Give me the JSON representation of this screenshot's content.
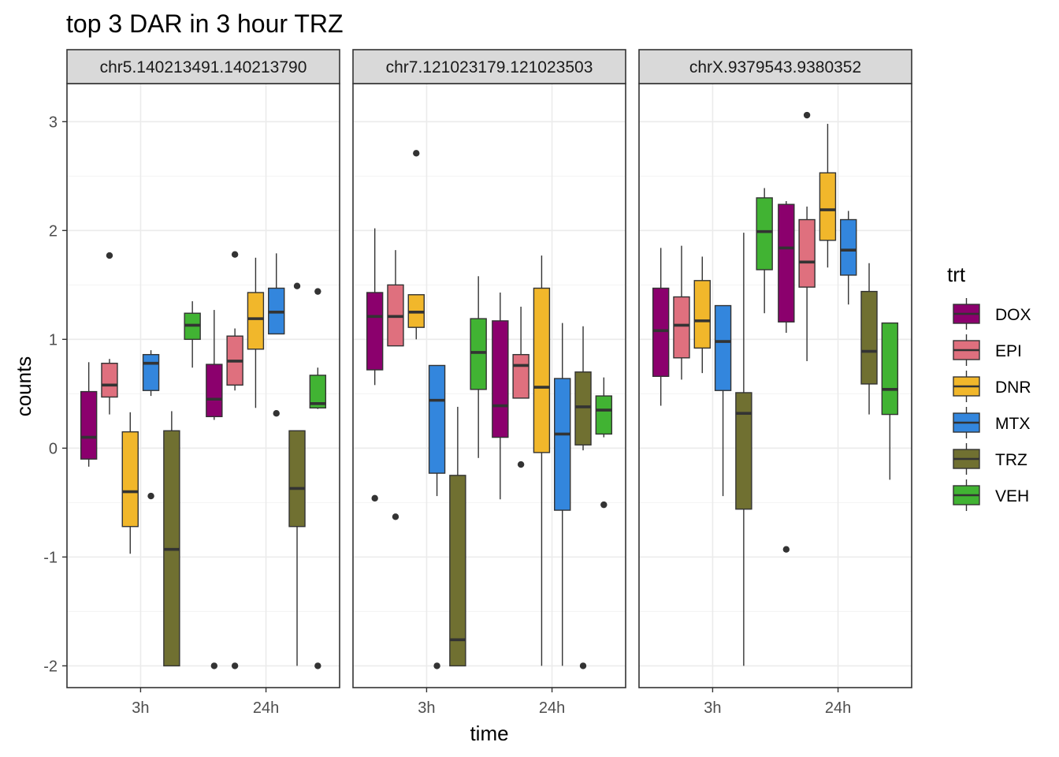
{
  "chart_data": {
    "type": "box",
    "title": "top 3 DAR in 3 hour TRZ",
    "xlabel": "time",
    "ylabel": "counts",
    "ylim": [
      -2.2,
      3.35
    ],
    "y_ticks": [
      -2,
      -1,
      0,
      1,
      2,
      3
    ],
    "y_tick_labels": [
      "-2",
      "-1",
      "0",
      "1",
      "2",
      "3"
    ],
    "categories": [
      "3h",
      "24h"
    ],
    "legend_title": "trt",
    "legend_position": "right",
    "grid": true,
    "series_order": [
      "DOX",
      "EPI",
      "DNR",
      "MTX",
      "TRZ",
      "VEH"
    ],
    "colors": {
      "DOX": "#8B006D",
      "EPI": "#DF707E",
      "DNR": "#F1B72B",
      "MTX": "#3386DD",
      "TRZ": "#707031",
      "VEH": "#41B333"
    },
    "panels": [
      {
        "strip": "chr5.140213491.140213790",
        "groups": {
          "3h": [
            {
              "trt": "DOX",
              "lower_whisker": -0.17,
              "q1": -0.1,
              "median": 0.1,
              "q3": 0.52,
              "upper_whisker": 0.79,
              "outliers": []
            },
            {
              "trt": "EPI",
              "lower_whisker": 0.31,
              "q1": 0.47,
              "median": 0.58,
              "q3": 0.78,
              "upper_whisker": 0.82,
              "outliers": [
                1.77
              ]
            },
            {
              "trt": "DNR",
              "lower_whisker": -0.97,
              "q1": -0.72,
              "median": -0.4,
              "q3": 0.15,
              "upper_whisker": 0.33,
              "outliers": []
            },
            {
              "trt": "MTX",
              "lower_whisker": 0.48,
              "q1": 0.53,
              "median": 0.78,
              "q3": 0.86,
              "upper_whisker": 0.9,
              "outliers": [
                -0.44
              ]
            },
            {
              "trt": "TRZ",
              "lower_whisker": -2.0,
              "q1": -2.0,
              "median": -0.93,
              "q3": 0.16,
              "upper_whisker": 0.34,
              "outliers": []
            },
            {
              "trt": "VEH",
              "lower_whisker": 0.74,
              "q1": 1.0,
              "median": 1.13,
              "q3": 1.24,
              "upper_whisker": 1.35,
              "outliers": []
            }
          ],
          "24h": [
            {
              "trt": "DOX",
              "lower_whisker": 0.26,
              "q1": 0.29,
              "median": 0.45,
              "q3": 0.77,
              "upper_whisker": 1.27,
              "outliers": [
                -2.0
              ]
            },
            {
              "trt": "EPI",
              "lower_whisker": 0.53,
              "q1": 0.58,
              "median": 0.8,
              "q3": 1.03,
              "upper_whisker": 1.1,
              "outliers": [
                1.78,
                -2.0
              ]
            },
            {
              "trt": "DNR",
              "lower_whisker": 0.37,
              "q1": 0.91,
              "median": 1.19,
              "q3": 1.43,
              "upper_whisker": 1.75,
              "outliers": []
            },
            {
              "trt": "MTX",
              "lower_whisker": 1.05,
              "q1": 1.05,
              "median": 1.25,
              "q3": 1.47,
              "upper_whisker": 1.79,
              "outliers": [
                0.32
              ]
            },
            {
              "trt": "TRZ",
              "lower_whisker": -2.0,
              "q1": -0.72,
              "median": -0.37,
              "q3": 0.16,
              "upper_whisker": 0.16,
              "outliers": [
                1.49
              ]
            },
            {
              "trt": "VEH",
              "lower_whisker": 0.36,
              "q1": 0.37,
              "median": 0.41,
              "q3": 0.67,
              "upper_whisker": 0.74,
              "outliers": [
                1.44,
                -2.0
              ]
            }
          ]
        }
      },
      {
        "strip": "chr7.121023179.121023503",
        "groups": {
          "3h": [
            {
              "trt": "DOX",
              "lower_whisker": 0.58,
              "q1": 0.72,
              "median": 1.21,
              "q3": 1.43,
              "upper_whisker": 2.02,
              "outliers": [
                -0.46
              ]
            },
            {
              "trt": "EPI",
              "lower_whisker": 0.94,
              "q1": 0.94,
              "median": 1.21,
              "q3": 1.5,
              "upper_whisker": 1.82,
              "outliers": [
                -0.63
              ]
            },
            {
              "trt": "DNR",
              "lower_whisker": 1.0,
              "q1": 1.11,
              "median": 1.25,
              "q3": 1.41,
              "upper_whisker": 1.41,
              "outliers": [
                2.71
              ]
            },
            {
              "trt": "MTX",
              "lower_whisker": -0.44,
              "q1": -0.23,
              "median": 0.44,
              "q3": 0.76,
              "upper_whisker": 0.76,
              "outliers": [
                -2.0
              ]
            },
            {
              "trt": "TRZ",
              "lower_whisker": -2.0,
              "q1": -2.0,
              "median": -1.76,
              "q3": -0.25,
              "upper_whisker": 0.38,
              "outliers": []
            },
            {
              "trt": "VEH",
              "lower_whisker": -0.09,
              "q1": 0.54,
              "median": 0.88,
              "q3": 1.19,
              "upper_whisker": 1.58,
              "outliers": []
            }
          ],
          "24h": [
            {
              "trt": "DOX",
              "lower_whisker": -0.47,
              "q1": 0.1,
              "median": 0.39,
              "q3": 1.17,
              "upper_whisker": 1.43,
              "outliers": []
            },
            {
              "trt": "EPI",
              "lower_whisker": 0.46,
              "q1": 0.46,
              "median": 0.76,
              "q3": 0.86,
              "upper_whisker": 1.3,
              "outliers": [
                -0.15
              ]
            },
            {
              "trt": "DNR",
              "lower_whisker": -2.0,
              "q1": -0.04,
              "median": 0.56,
              "q3": 1.47,
              "upper_whisker": 1.77,
              "outliers": []
            },
            {
              "trt": "MTX",
              "lower_whisker": -2.0,
              "q1": -0.57,
              "median": 0.13,
              "q3": 0.64,
              "upper_whisker": 1.15,
              "outliers": []
            },
            {
              "trt": "TRZ",
              "lower_whisker": -0.02,
              "q1": 0.03,
              "median": 0.38,
              "q3": 0.7,
              "upper_whisker": 1.12,
              "outliers": [
                -2.0
              ]
            },
            {
              "trt": "VEH",
              "lower_whisker": 0.1,
              "q1": 0.13,
              "median": 0.35,
              "q3": 0.48,
              "upper_whisker": 0.65,
              "outliers": [
                -0.52
              ]
            }
          ]
        }
      },
      {
        "strip": "chrX.9379543.9380352",
        "groups": {
          "3h": [
            {
              "trt": "DOX",
              "lower_whisker": 0.39,
              "q1": 0.66,
              "median": 1.08,
              "q3": 1.47,
              "upper_whisker": 1.84,
              "outliers": []
            },
            {
              "trt": "EPI",
              "lower_whisker": 0.63,
              "q1": 0.83,
              "median": 1.13,
              "q3": 1.39,
              "upper_whisker": 1.86,
              "outliers": []
            },
            {
              "trt": "DNR",
              "lower_whisker": 0.69,
              "q1": 0.92,
              "median": 1.17,
              "q3": 1.54,
              "upper_whisker": 1.76,
              "outliers": []
            },
            {
              "trt": "MTX",
              "lower_whisker": -0.44,
              "q1": 0.53,
              "median": 0.98,
              "q3": 1.31,
              "upper_whisker": 1.31,
              "outliers": []
            },
            {
              "trt": "TRZ",
              "lower_whisker": -2.0,
              "q1": -0.56,
              "median": 0.32,
              "q3": 0.51,
              "upper_whisker": 1.98,
              "outliers": []
            },
            {
              "trt": "VEH",
              "lower_whisker": 1.24,
              "q1": 1.64,
              "median": 1.99,
              "q3": 2.3,
              "upper_whisker": 2.39,
              "outliers": []
            }
          ],
          "24h": [
            {
              "trt": "DOX",
              "lower_whisker": 1.06,
              "q1": 1.16,
              "median": 1.84,
              "q3": 2.24,
              "upper_whisker": 2.27,
              "outliers": [
                -0.93
              ]
            },
            {
              "trt": "EPI",
              "lower_whisker": 0.8,
              "q1": 1.48,
              "median": 1.71,
              "q3": 2.1,
              "upper_whisker": 2.22,
              "outliers": [
                3.06
              ]
            },
            {
              "trt": "DNR",
              "lower_whisker": 1.66,
              "q1": 1.91,
              "median": 2.19,
              "q3": 2.53,
              "upper_whisker": 2.98,
              "outliers": []
            },
            {
              "trt": "MTX",
              "lower_whisker": 1.32,
              "q1": 1.59,
              "median": 1.82,
              "q3": 2.1,
              "upper_whisker": 2.18,
              "outliers": []
            },
            {
              "trt": "TRZ",
              "lower_whisker": 0.31,
              "q1": 0.59,
              "median": 0.89,
              "q3": 1.44,
              "upper_whisker": 1.7,
              "outliers": []
            },
            {
              "trt": "VEH",
              "lower_whisker": -0.29,
              "q1": 0.31,
              "median": 0.54,
              "q3": 1.15,
              "upper_whisker": 1.15,
              "outliers": []
            }
          ]
        }
      }
    ]
  }
}
